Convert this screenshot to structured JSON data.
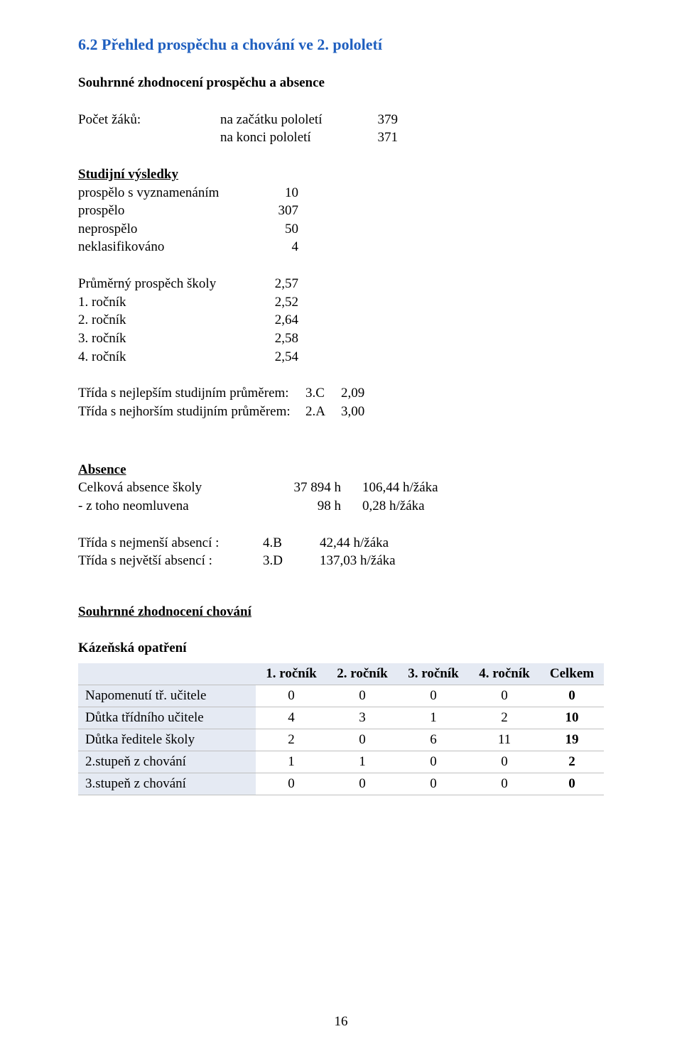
{
  "heading": "6.2  Přehled prospěchu a chování ve 2. pololetí",
  "summary_title": "Souhrnné zhodnocení prospěchu a absence",
  "student_count": {
    "label": "Počet žáků:",
    "start_label": "na začátku pololetí",
    "start_value": "379",
    "end_label": "na konci pololetí",
    "end_value": "371"
  },
  "study_results": {
    "title": "Studijní výsledky",
    "rows": [
      {
        "label": "prospělo s vyznamenáním",
        "value": "10"
      },
      {
        "label": "prospělo",
        "value": "307"
      },
      {
        "label": "neprospělo",
        "value": "50"
      },
      {
        "label": "neklasifikováno",
        "value": "4"
      }
    ]
  },
  "avg_grades": {
    "rows": [
      {
        "label": "Průměrný prospěch školy",
        "value": "2,57"
      },
      {
        "label": "1. ročník",
        "value": "2,52"
      },
      {
        "label": "2. ročník",
        "value": "2,64"
      },
      {
        "label": "3. ročník",
        "value": "2,58"
      },
      {
        "label": "4. ročník",
        "value": "2,54"
      }
    ]
  },
  "class_extremes": {
    "best": {
      "label": "Třída s nejlepším studijním průměrem:",
      "class": "3.C",
      "value": "2,09"
    },
    "worst": {
      "label": "Třída s nejhorším studijním průměrem:",
      "class": "2.A",
      "value": "3,00"
    }
  },
  "absence": {
    "title": "Absence",
    "total": {
      "label": "Celková absence školy",
      "hours": "37 894 h",
      "per": "106,44 h/žáka"
    },
    "unexcused": {
      "label": "- z toho neomluvena",
      "hours": "98 h",
      "per": "0,28  h/žáka"
    },
    "min": {
      "label": "Třída s nejmenší absencí :",
      "class": "4.B",
      "per": "42,44 h/žáka"
    },
    "max": {
      "label": "Třída s největší absencí :",
      "class": "3.D",
      "per": "137,03 h/žáka"
    }
  },
  "behavior_title": "Souhrnné zhodnocení chování",
  "disciplinary_title": "Kázeňská opatření",
  "disc_table": {
    "columns": [
      "",
      "1. ročník",
      "2. ročník",
      "3. ročník",
      "4. ročník",
      "Celkem"
    ],
    "rows": [
      {
        "label": "Napomenutí tř. učitele",
        "v": [
          "0",
          "0",
          "0",
          "0"
        ],
        "total": "0"
      },
      {
        "label": "Důtka třídního učitele",
        "v": [
          "4",
          "3",
          "1",
          "2"
        ],
        "total": "10"
      },
      {
        "label": "Důtka ředitele školy",
        "v": [
          "2",
          "0",
          "6",
          "11"
        ],
        "total": "19"
      },
      {
        "label": "2.stupeň z chování",
        "v": [
          "1",
          "1",
          "0",
          "0"
        ],
        "total": "2"
      },
      {
        "label": "3.stupeň z chování",
        "v": [
          "0",
          "0",
          "0",
          "0"
        ],
        "total": "0"
      }
    ]
  },
  "page_number": "16"
}
